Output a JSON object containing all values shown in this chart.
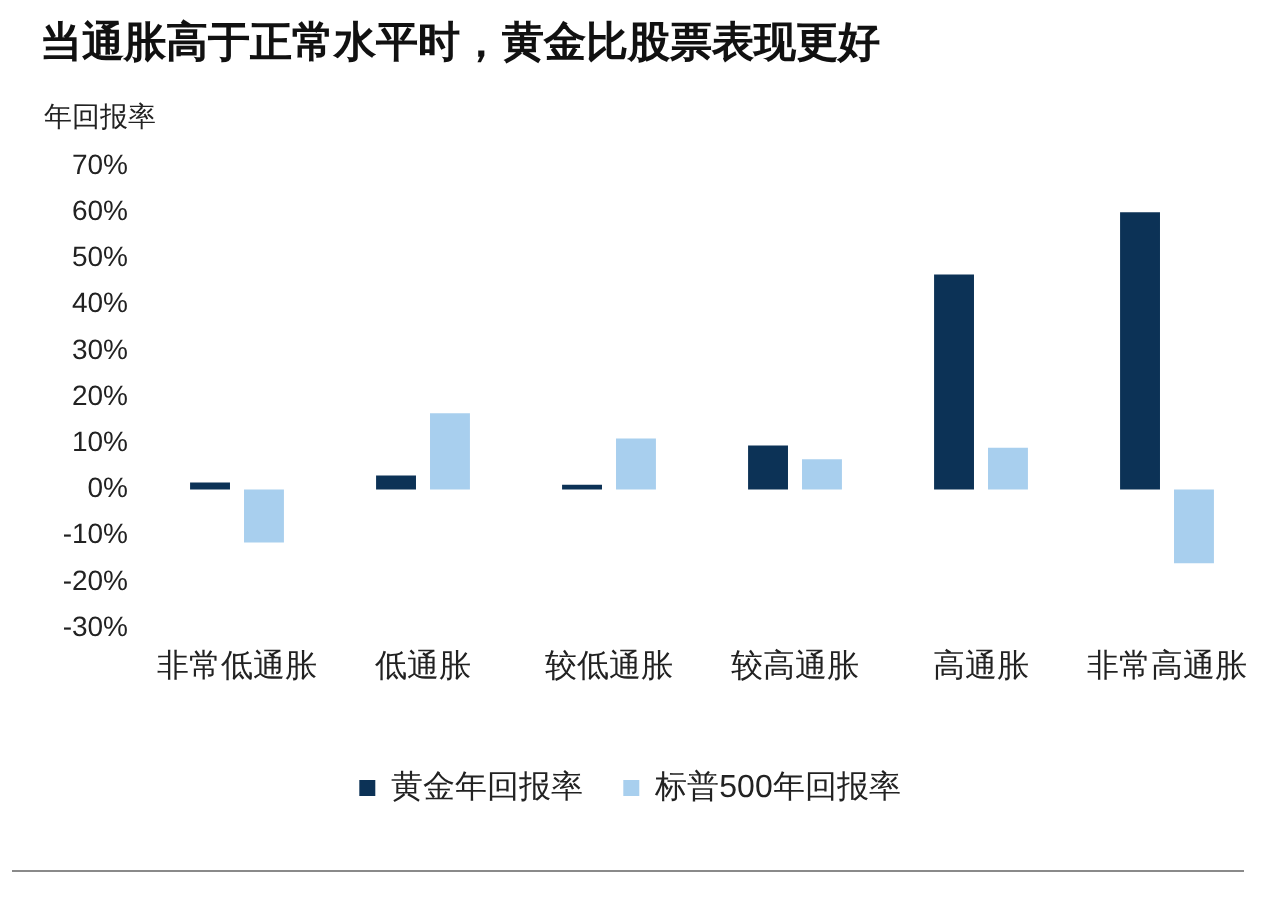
{
  "chart_data": {
    "type": "bar",
    "title": "当通胀高于正常水平时，黄金比股票表现更好",
    "ylabel": "年回报率",
    "categories": [
      "非常低通胀",
      "低通胀",
      "较低通胀",
      "较高通胀",
      "高通胀",
      "非常高通胀"
    ],
    "series": [
      {
        "name": "黄金年回报率",
        "color": "#0c3256",
        "values": [
          1.5,
          3,
          1,
          9.5,
          46.5,
          60
        ]
      },
      {
        "name": "标普500年回报率",
        "color": "#a8cfee",
        "values": [
          -11.5,
          16.5,
          11,
          6.5,
          9,
          -16
        ]
      }
    ],
    "ylim": [
      -30,
      70
    ],
    "yticks": [
      {
        "value": -30,
        "label": "-30%"
      },
      {
        "value": -20,
        "label": "-20%"
      },
      {
        "value": -10,
        "label": "-10%"
      },
      {
        "value": 0,
        "label": "0%"
      },
      {
        "value": 10,
        "label": "10%"
      },
      {
        "value": 20,
        "label": "20%"
      },
      {
        "value": 30,
        "label": "30%"
      },
      {
        "value": 40,
        "label": "40%"
      },
      {
        "value": 50,
        "label": "50%"
      },
      {
        "value": 60,
        "label": "60%"
      },
      {
        "value": 70,
        "label": "70%"
      }
    ],
    "grid": false,
    "legend": "bottom"
  }
}
